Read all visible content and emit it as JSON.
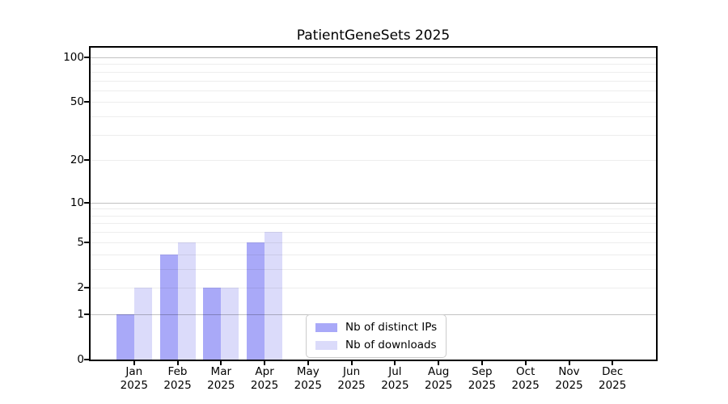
{
  "chart_data": {
    "type": "bar",
    "title": "PatientGeneSets 2025",
    "categories": [
      "Jan",
      "Feb",
      "Mar",
      "Apr",
      "May",
      "Jun",
      "Jul",
      "Aug",
      "Sep",
      "Oct",
      "Nov",
      "Dec"
    ],
    "x_year_label": "2025",
    "series": [
      {
        "name": "Nb of distinct IPs",
        "color": "#a9a9f8",
        "values": [
          1,
          4,
          2,
          5,
          0,
          0,
          0,
          0,
          0,
          0,
          0,
          0
        ]
      },
      {
        "name": "Nb of downloads",
        "color": "#dbdbfa",
        "values": [
          2,
          5,
          2,
          6,
          0,
          0,
          0,
          0,
          0,
          0,
          0,
          0
        ]
      }
    ],
    "y_axis": {
      "scale": "log1p",
      "ylim": [
        0,
        116
      ],
      "tick_values": [
        0,
        1,
        2,
        5,
        10,
        20,
        50,
        100
      ],
      "tick_labels": [
        "0",
        "1",
        "2",
        "5",
        "10",
        "20",
        "50",
        "100"
      ],
      "grid_major_values": [
        1,
        10,
        100
      ],
      "grid_minor_values": [
        2,
        3,
        4,
        5,
        6,
        7,
        8,
        9,
        20,
        30,
        40,
        50,
        60,
        70,
        80,
        90
      ]
    },
    "legend": {
      "position": "inside-bottom-center"
    },
    "grid": true
  }
}
